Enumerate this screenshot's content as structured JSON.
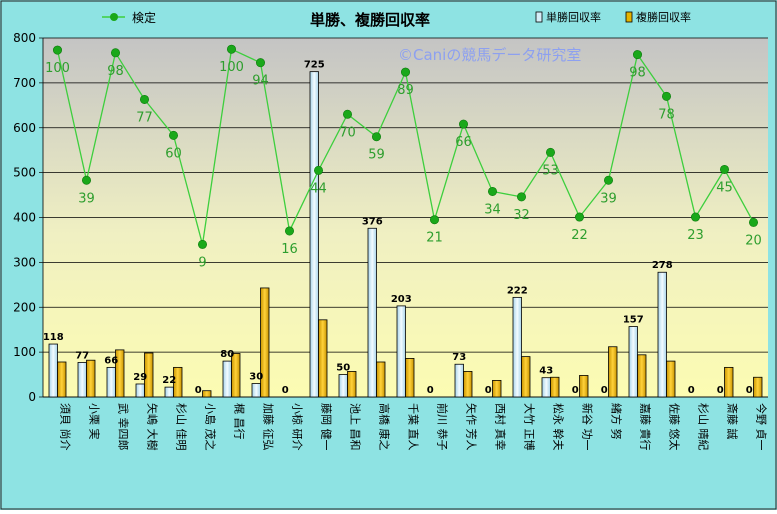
{
  "chart_data": {
    "type": "bar",
    "title": "単勝、複勝回収率",
    "watermark": "©Caniの競馬データ研究室",
    "ylim": [
      0,
      800
    ],
    "yticks": [
      0,
      100,
      200,
      300,
      400,
      500,
      600,
      700,
      800
    ],
    "legend": {
      "line": "検定",
      "bar1": "単勝回収率",
      "bar2": "複勝回収率"
    },
    "categories": [
      "須貝 尚介",
      "小栗 実",
      "武 幸四郎",
      "矢嶋 大樹",
      "杉山 佳明",
      "小島 茂之",
      "梶 昌行",
      "加藤 征弘",
      "小椋 研介",
      "藤岡 健一",
      "池上 昌和",
      "高橋 康之",
      "千葉 直人",
      "前川 恭子",
      "矢作 芳人",
      "西村 真幸",
      "大竹 正博",
      "松永 幹夫",
      "新谷 功一",
      "緒方 努",
      "嘉藤 貴行",
      "佐藤 悠太",
      "杉山 晴紀",
      "斎藤 誠",
      "今野 貞一"
    ],
    "series": [
      {
        "name": "単勝回収率",
        "values": [
          118,
          77,
          66,
          29,
          22,
          0,
          80,
          30,
          0,
          725,
          50,
          376,
          203,
          0,
          73,
          0,
          222,
          43,
          0,
          0,
          157,
          278,
          0,
          0,
          0
        ]
      },
      {
        "name": "複勝回収率",
        "values": [
          78,
          82,
          105,
          98,
          66,
          14,
          97,
          243,
          0,
          172,
          57,
          78,
          86,
          0,
          57,
          37,
          90,
          44,
          48,
          112,
          94,
          80,
          0,
          66,
          44
        ]
      },
      {
        "name": "検定",
        "values": [
          773,
          483,
          767,
          663,
          583,
          340,
          775,
          745,
          370,
          505,
          630,
          580,
          724,
          395,
          608,
          458,
          446,
          545,
          401,
          483,
          763,
          670,
          401,
          507,
          389
        ]
      }
    ],
    "line_labels": [
      100,
      39,
      98,
      77,
      60,
      9,
      100,
      94,
      16,
      44,
      70,
      59,
      89,
      21,
      66,
      34,
      32,
      53,
      22,
      39,
      98,
      78,
      23,
      45,
      20
    ],
    "colors": {
      "bar1": "#d6eef8",
      "bar2": "#e6b400",
      "line": "#3dcf3d",
      "marker": "#1aa81a",
      "line_label": "#2e9e2e",
      "frame_bg": "#8ee3e3",
      "watermark": "#8da0f0"
    }
  }
}
